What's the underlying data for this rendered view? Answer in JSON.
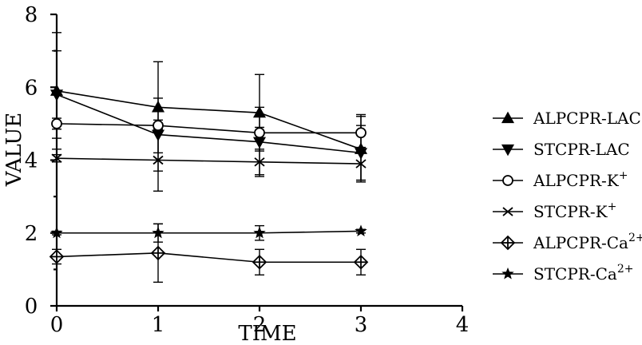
{
  "chart_data": {
    "type": "line",
    "xlabel": "TIME",
    "ylabel": "VALUE",
    "xlim": [
      0,
      4
    ],
    "ylim": [
      0,
      8
    ],
    "x_ticks": [
      0,
      1,
      2,
      3,
      4
    ],
    "y_ticks": [
      0,
      2,
      4,
      6,
      8
    ],
    "grid": false,
    "legend_position": "right",
    "x": [
      0,
      1,
      2,
      3
    ],
    "series": [
      {
        "name": "ALPCPR-LAC",
        "name_base": "ALPCPR-LAC",
        "name_sup": "",
        "marker": "triangle-up",
        "values": [
          5.9,
          5.45,
          5.3,
          4.3
        ],
        "errors": [
          1.6,
          1.25,
          1.05,
          0.9
        ]
      },
      {
        "name": "STCPR-LAC",
        "name_base": "STCPR-LAC",
        "name_sup": "",
        "marker": "triangle-down",
        "values": [
          5.8,
          4.7,
          4.5,
          4.2
        ],
        "errors": [
          1.2,
          1.0,
          0.95,
          0.75
        ]
      },
      {
        "name": "ALPCPR-K+",
        "name_base": "ALPCPR-K",
        "name_sup": "+",
        "marker": "circle",
        "values": [
          5.0,
          4.95,
          4.75,
          4.75
        ],
        "errors": [
          0.15,
          0.15,
          0.15,
          0.5
        ]
      },
      {
        "name": "STCPR-K+",
        "name_base": "STCPR-K",
        "name_sup": "+",
        "marker": "x",
        "values": [
          4.05,
          4.0,
          3.95,
          3.9
        ],
        "errors": [
          0.1,
          0.85,
          0.35,
          0.45
        ]
      },
      {
        "name": "ALPCPR-Ca2+",
        "name_base": "ALPCPR-Ca",
        "name_sup": "2+",
        "marker": "diamond-plus",
        "values": [
          1.35,
          1.45,
          1.2,
          1.2
        ],
        "errors": [
          0.2,
          0.8,
          0.35,
          0.35
        ]
      },
      {
        "name": "STCPR-Ca2+",
        "name_base": "STCPR-Ca",
        "name_sup": "2+",
        "marker": "star",
        "values": [
          2.0,
          2.0,
          2.0,
          2.05
        ],
        "errors": [
          0.05,
          0.25,
          0.2,
          0.05
        ]
      }
    ]
  }
}
